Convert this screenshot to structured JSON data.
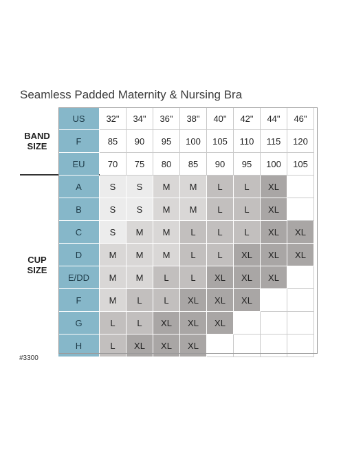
{
  "title": "Seamless Padded Maternity & Nursing Bra",
  "product_code": "#3300",
  "band_label": [
    "BAND",
    "SIZE"
  ],
  "cup_label": [
    "CUP",
    "SIZE"
  ],
  "band_rows": [
    {
      "label": "US",
      "values": [
        "32\"",
        "34\"",
        "36\"",
        "38\"",
        "40\"",
        "42\"",
        "44\"",
        "46\""
      ]
    },
    {
      "label": "F",
      "values": [
        "85",
        "90",
        "95",
        "100",
        "105",
        "110",
        "115",
        "120"
      ]
    },
    {
      "label": "EU",
      "values": [
        "70",
        "75",
        "80",
        "85",
        "90",
        "95",
        "100",
        "105"
      ]
    }
  ],
  "cup_rows": [
    {
      "label": "A",
      "values": [
        "S",
        "S",
        "M",
        "M",
        "L",
        "L",
        "XL",
        ""
      ]
    },
    {
      "label": "B",
      "values": [
        "S",
        "S",
        "M",
        "M",
        "L",
        "L",
        "XL",
        ""
      ]
    },
    {
      "label": "C",
      "values": [
        "S",
        "M",
        "M",
        "L",
        "L",
        "L",
        "XL",
        "XL"
      ]
    },
    {
      "label": "D",
      "values": [
        "M",
        "M",
        "M",
        "L",
        "L",
        "XL",
        "XL",
        "XL"
      ]
    },
    {
      "label": "E/DD",
      "values": [
        "M",
        "M",
        "L",
        "L",
        "XL",
        "XL",
        "XL",
        ""
      ]
    },
    {
      "label": "F",
      "values": [
        "M",
        "L",
        "L",
        "XL",
        "XL",
        "XL",
        "",
        ""
      ]
    },
    {
      "label": "G",
      "values": [
        "L",
        "L",
        "XL",
        "XL",
        "XL",
        "",
        "",
        ""
      ]
    },
    {
      "label": "H",
      "values": [
        "L",
        "XL",
        "XL",
        "XL",
        "",
        "",
        "",
        ""
      ]
    }
  ],
  "size_colors": {
    "S": "#ececec",
    "M": "#d9d7d6",
    "L": "#c2bfbe",
    "XL": "#a9a6a5"
  }
}
